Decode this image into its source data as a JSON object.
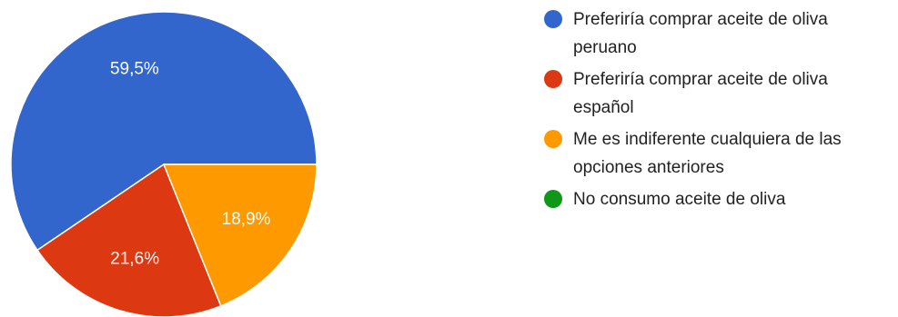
{
  "chart_data": {
    "type": "pie",
    "slices": [
      {
        "label": "Preferiría comprar aceite de oliva peruano",
        "value": 59.5,
        "display": "59,5%",
        "color": "#3366cc"
      },
      {
        "label": "Preferiría comprar aceite de oliva español",
        "value": 21.6,
        "display": "21,6%",
        "color": "#dc3912"
      },
      {
        "label": "Me es indiferente cualquiera de las opciones anteriores",
        "value": 18.9,
        "display": "18,9%",
        "color": "#ff9900"
      },
      {
        "label": "No consumo aceite de oliva",
        "value": 0,
        "display": "",
        "color": "#109618"
      }
    ],
    "legend_position": "right",
    "start_direction": "right",
    "slice_order": "counter-clockwise"
  }
}
